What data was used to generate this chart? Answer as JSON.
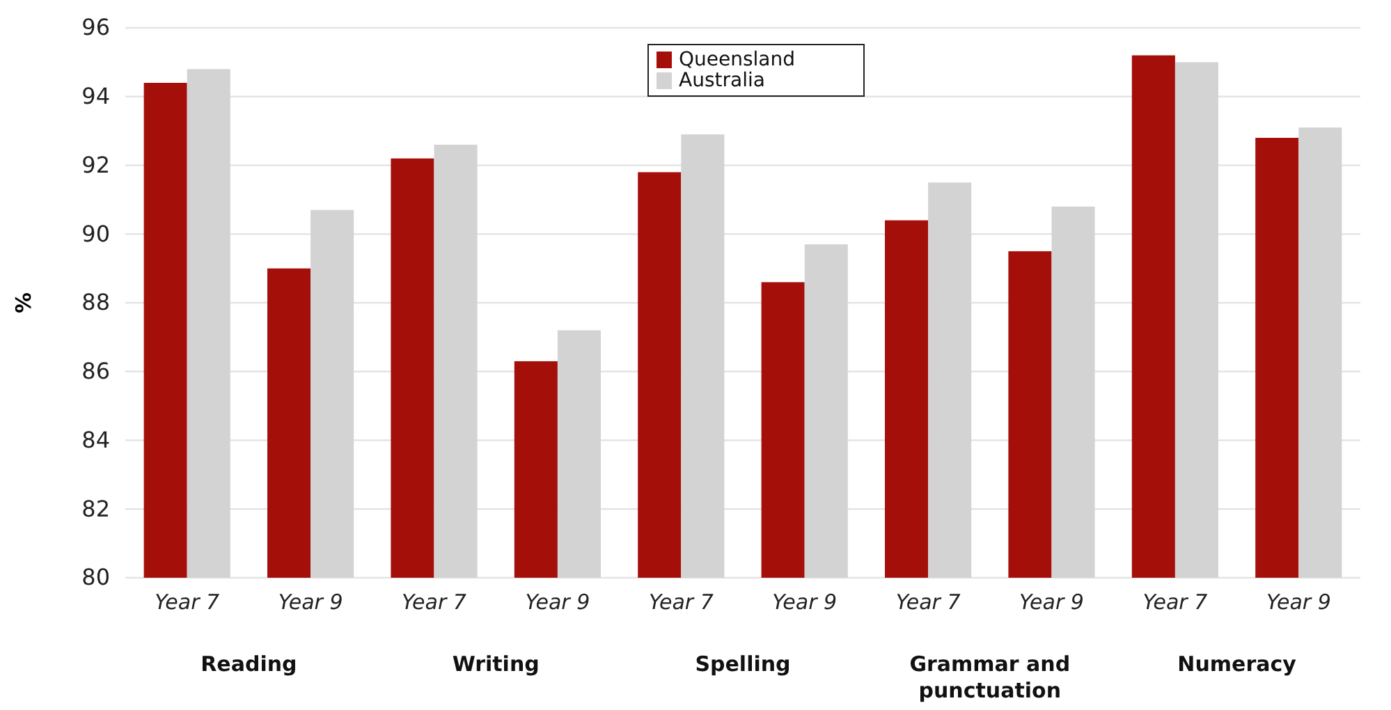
{
  "chart_data": {
    "type": "bar",
    "ylabel": "%",
    "categories": [
      "Year 7",
      "Year 9",
      "Year 7",
      "Year 9",
      "Year 7",
      "Year 9",
      "Year 7",
      "Year 9",
      "Year 7",
      "Year 9"
    ],
    "series": [
      {
        "name": "Queensland",
        "color": "#a50f0a",
        "values": [
          94.4,
          89.0,
          92.2,
          86.3,
          91.8,
          88.6,
          90.4,
          89.5,
          95.2,
          92.8
        ]
      },
      {
        "name": "Australia",
        "color": "#d3d3d3",
        "values": [
          94.8,
          90.7,
          92.6,
          87.2,
          92.9,
          89.7,
          91.5,
          90.8,
          95.0,
          93.1
        ]
      }
    ],
    "annotations": [
      "Reading",
      "Writing",
      "Spelling",
      "Grammar and punctuation",
      "Numeracy"
    ],
    "ylim": [
      80,
      96
    ],
    "yticks": [
      80,
      82,
      84,
      86,
      88,
      90,
      92,
      94,
      96
    ],
    "grid": "y",
    "legend": "top"
  }
}
